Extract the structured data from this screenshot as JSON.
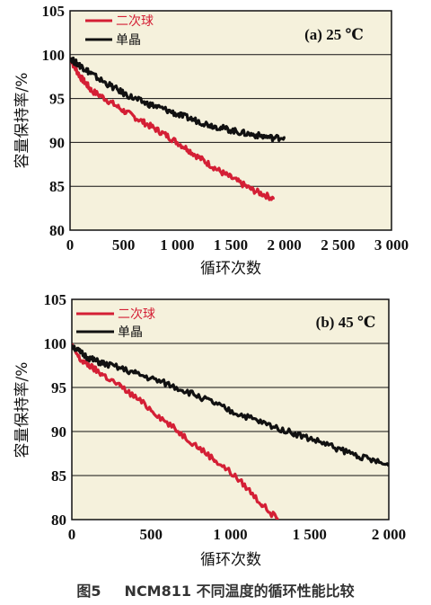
{
  "caption": {
    "number": "图5",
    "text": "NCM811 不同温度的循环性能比较"
  },
  "chart_data": [
    {
      "type": "line",
      "panel_label": "(a) 25 ℃",
      "xlabel": "循环次数",
      "ylabel": "容量保持率/%",
      "xlim": [
        0,
        3000
      ],
      "ylim": [
        80,
        105
      ],
      "x_ticks": [
        0,
        500,
        1000,
        1500,
        2000,
        2500,
        3000
      ],
      "x_tick_labels": [
        "0",
        "500",
        "1 000",
        "1 500",
        "2 000",
        "2 500",
        "3 000"
      ],
      "y_ticks": [
        80,
        85,
        90,
        95,
        100,
        105
      ],
      "y_tick_labels": [
        "80",
        "85",
        "90",
        "95",
        "100",
        "105"
      ],
      "grid": "horizontal",
      "plot_background": "#f5f1dc",
      "legend_position": "top-left",
      "series": [
        {
          "name": "二次球",
          "color": "#d41f35",
          "x": [
            0,
            50,
            100,
            150,
            200,
            300,
            400,
            500,
            600,
            700,
            800,
            900,
            1000,
            1100,
            1200,
            1300,
            1400,
            1500,
            1600,
            1700,
            1800,
            1900
          ],
          "y": [
            99.6,
            98.4,
            97.4,
            96.7,
            95.9,
            95.2,
            94.4,
            93.6,
            92.9,
            92.2,
            91.5,
            90.8,
            90.0,
            89.2,
            88.3,
            87.5,
            86.7,
            86.0,
            85.3,
            84.6,
            84.1,
            83.6
          ]
        },
        {
          "name": "单晶",
          "color": "#111111",
          "x": [
            0,
            50,
            100,
            150,
            200,
            300,
            400,
            500,
            600,
            700,
            800,
            900,
            1000,
            1100,
            1200,
            1300,
            1400,
            1500,
            1600,
            1700,
            1800,
            1900,
            2000
          ],
          "y": [
            99.6,
            99.1,
            98.7,
            98.3,
            97.8,
            97.0,
            96.3,
            95.6,
            95.0,
            94.5,
            94.1,
            93.7,
            93.2,
            92.8,
            92.4,
            92.0,
            91.7,
            91.4,
            91.1,
            90.9,
            90.7,
            90.5,
            90.6
          ]
        }
      ]
    },
    {
      "type": "line",
      "panel_label": "(b) 45 ℃",
      "xlabel": "循环次数",
      "ylabel": "容量保持率/%",
      "xlim": [
        0,
        2000
      ],
      "ylim": [
        80,
        105
      ],
      "x_ticks": [
        0,
        500,
        1000,
        1500,
        2000
      ],
      "x_tick_labels": [
        "0",
        "500",
        "1 000",
        "1 500",
        "2 000"
      ],
      "y_ticks": [
        80,
        85,
        90,
        95,
        100,
        105
      ],
      "y_tick_labels": [
        "80",
        "85",
        "90",
        "95",
        "100",
        "105"
      ],
      "grid": "horizontal",
      "plot_background": "#f5f1dc",
      "legend_position": "top-left",
      "series": [
        {
          "name": "二次球",
          "color": "#d41f35",
          "x": [
            0,
            50,
            100,
            150,
            200,
            300,
            400,
            500,
            600,
            700,
            800,
            900,
            1000,
            1100,
            1200,
            1300
          ],
          "y": [
            99.8,
            98.2,
            97.6,
            97.0,
            96.4,
            95.2,
            93.9,
            92.5,
            91.0,
            89.6,
            88.2,
            86.8,
            85.4,
            83.7,
            81.7,
            80.0
          ]
        },
        {
          "name": "单晶",
          "color": "#111111",
          "x": [
            0,
            50,
            100,
            150,
            200,
            300,
            400,
            500,
            600,
            700,
            800,
            900,
            1000,
            1100,
            1200,
            1300,
            1400,
            1500,
            1600,
            1700,
            1800,
            1900,
            2000
          ],
          "y": [
            99.8,
            99.0,
            98.4,
            98.0,
            97.7,
            97.2,
            96.6,
            96.0,
            95.4,
            94.7,
            94.0,
            93.2,
            92.3,
            91.7,
            91.0,
            90.4,
            89.8,
            89.2,
            88.6,
            87.9,
            87.3,
            86.7,
            86.1
          ]
        }
      ]
    }
  ]
}
